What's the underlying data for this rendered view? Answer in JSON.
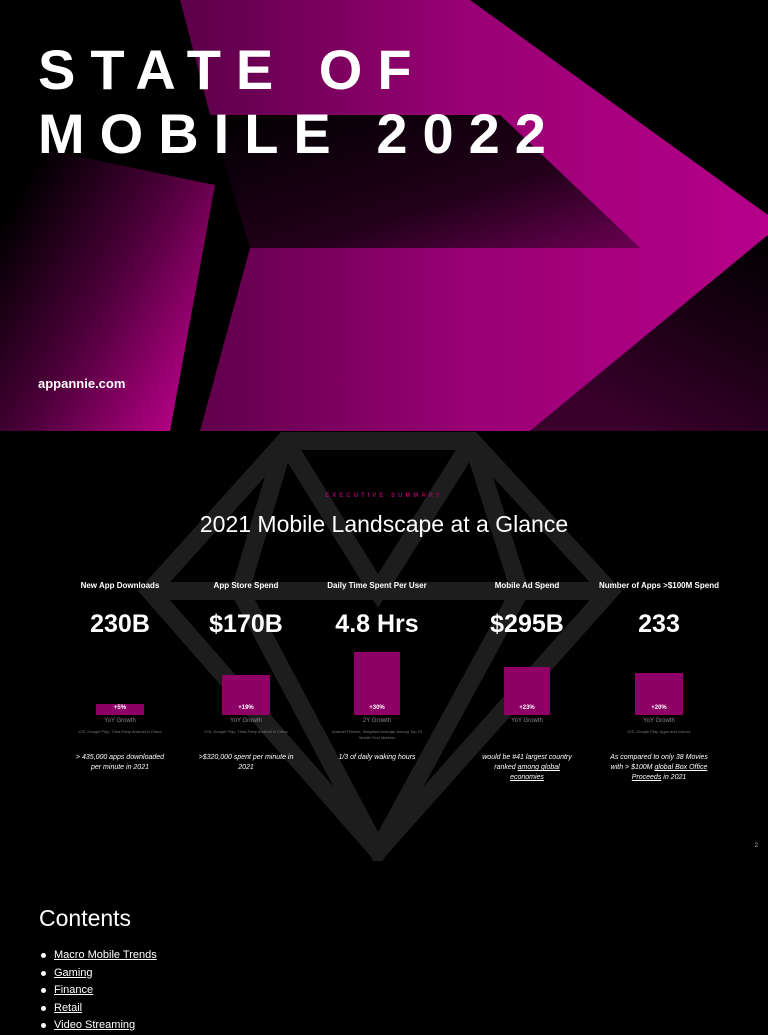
{
  "cover": {
    "title_line1": "STATE OF",
    "title_line2": "MOBILE 2022",
    "url": "appannie.com",
    "accent_color": "#a3007a"
  },
  "summary": {
    "eyebrow": "EXECUTIVE SUMMARY",
    "title": "2021 Mobile Landscape at a Glance",
    "page_number": "2",
    "metrics": [
      {
        "label": "New App Downloads",
        "value": "230B",
        "growth_pct": "+5%",
        "growth_value": 5,
        "growth_label": "YoY Growth",
        "source": "iOS, Google Play, Third-Party Android in China",
        "note": "> 435,000 apps downloaded per minute in 2021",
        "note_link": ""
      },
      {
        "label": "App Store Spend",
        "value": "$170B",
        "growth_pct": "+19%",
        "growth_value": 19,
        "growth_label": "YoY Growth",
        "source": "iOS, Google Play, Third-Party Android in China",
        "note": ">$320,000 spent per minute in 2021",
        "note_link": ""
      },
      {
        "label": "Daily Time Spent Per User",
        "value": "4.8 Hrs",
        "growth_pct": "+30%",
        "growth_value": 30,
        "growth_label": "2Y Growth",
        "source": "Android Phones; Weighted Average Among Top 10 Mobile-First Markets",
        "note": "1/3 of daily waking hours",
        "note_link": ""
      },
      {
        "label": "Mobile Ad Spend",
        "value": "$295B",
        "growth_pct": "+23%",
        "growth_value": 23,
        "growth_label": "YoY Growth",
        "source": "",
        "note": "would be #41 largest country ranked",
        "note_link": "among global economies"
      },
      {
        "label": "Number of Apps >$100M Spend",
        "value": "233",
        "growth_pct": "+20%",
        "growth_value": 20,
        "growth_label": "YoY Growth",
        "source": "iOS, Google Play, Apps and Games",
        "note": "As compared to only 38 Movies with > $100M",
        "note_link": "global Box Office Proceeds",
        "note_tail": "in 2021"
      }
    ]
  },
  "contents": {
    "heading": "Contents",
    "items": [
      "Macro Mobile Trends",
      "Gaming",
      "Finance",
      "Retail",
      "Video Streaming"
    ]
  }
}
